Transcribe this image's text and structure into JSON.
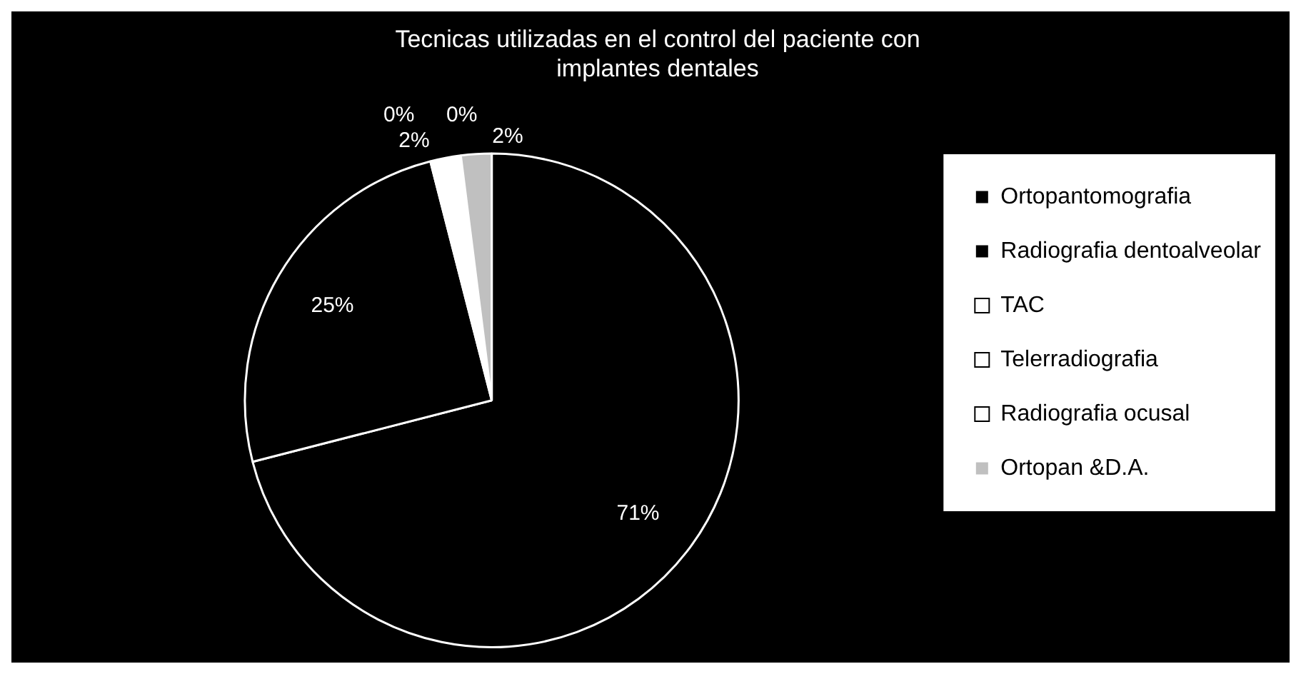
{
  "chart_data": {
    "type": "pie",
    "title": [
      "Tecnicas utilizadas en el control del paciente con",
      "implantes dentales"
    ],
    "categories": [
      "Ortopantomografia",
      "Radiografia dentoalveolar",
      "TAC",
      "Telerradiografia",
      "Radiografia ocusal",
      "Ortopan &D.A."
    ],
    "values": [
      71,
      25,
      0,
      0,
      2,
      2
    ],
    "value_labels": [
      "71%",
      "25%",
      "0%",
      "0%",
      "2%",
      "2%"
    ],
    "colors": [
      "#000000",
      "#000000",
      "#ffffff",
      "#ffffff",
      "#ffffff",
      "#c0c0c0"
    ],
    "legend": "right"
  }
}
